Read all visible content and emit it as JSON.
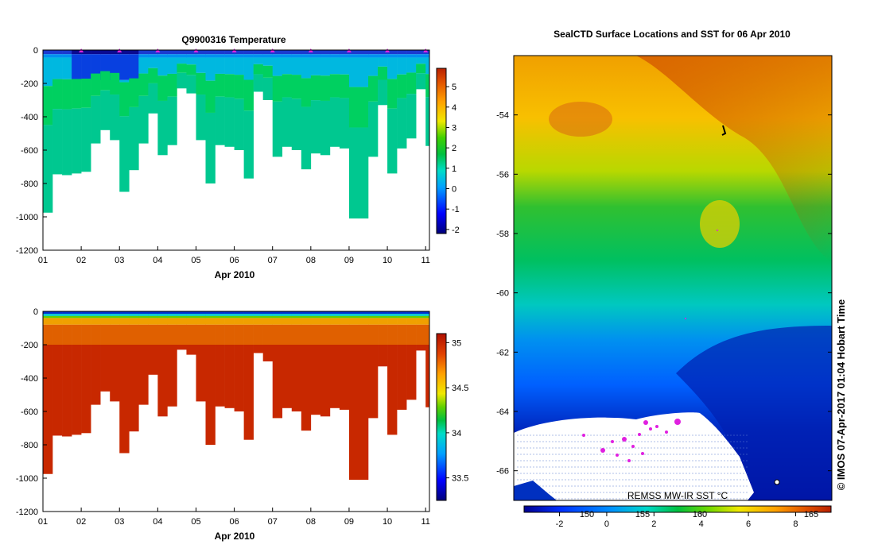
{
  "chart_data": [
    {
      "type": "heatmap",
      "title": "Q9900316  Temperature",
      "xlabel": "Apr 2010",
      "ylabel": "",
      "x_ticks": [
        "01",
        "02",
        "03",
        "04",
        "05",
        "06",
        "07",
        "08",
        "09",
        "10",
        "11"
      ],
      "y_ticks": [
        "0",
        "-200",
        "-400",
        "-600",
        "-800",
        "-1000",
        "-1200"
      ],
      "xlim": [
        1,
        11.1
      ],
      "ylim": [
        -1200,
        0
      ],
      "colorbar": {
        "min": -2.2,
        "max": 5.9,
        "ticks": [
          "5",
          "4",
          "3",
          "2",
          "1",
          "0",
          "-1",
          "-2"
        ]
      },
      "profile_days": [
        1.0,
        1.25,
        1.5,
        1.75,
        2.0,
        2.25,
        2.5,
        2.75,
        3.0,
        3.25,
        3.5,
        3.75,
        4.0,
        4.25,
        4.5,
        4.75,
        5.0,
        5.25,
        5.5,
        5.75,
        6.0,
        6.25,
        6.5,
        6.75,
        7.0,
        7.25,
        7.5,
        7.75,
        8.0,
        8.25,
        8.5,
        8.75,
        9.0,
        9.25,
        9.5,
        9.75,
        10.0,
        10.25,
        10.5,
        10.75,
        11.0
      ],
      "profile_max_depth": [
        975,
        745,
        750,
        740,
        730,
        560,
        480,
        540,
        850,
        720,
        560,
        380,
        630,
        570,
        230,
        260,
        540,
        800,
        570,
        580,
        600,
        770,
        250,
        300,
        640,
        580,
        600,
        715,
        620,
        630,
        580,
        590,
        1010,
        1010,
        640,
        330,
        740,
        590,
        530,
        235,
        575
      ],
      "surface_markers_days": [
        2.0,
        3.0,
        4.0,
        5.0,
        6.0,
        7.0,
        8.0,
        9.0,
        10.0,
        11.0
      ]
    },
    {
      "type": "heatmap",
      "title": "",
      "xlabel": "Apr 2010",
      "ylabel": "",
      "x_ticks": [
        "01",
        "02",
        "03",
        "04",
        "05",
        "06",
        "07",
        "08",
        "09",
        "10",
        "11"
      ],
      "y_ticks": [
        "0",
        "-200",
        "-400",
        "-600",
        "-800",
        "-1000",
        "-1200"
      ],
      "xlim": [
        1,
        11.1
      ],
      "ylim": [
        -1200,
        0
      ],
      "colorbar": {
        "min": 33.25,
        "max": 35.1,
        "ticks": [
          "35",
          "34.5",
          "34",
          "33.5"
        ]
      },
      "profile_days": [
        1.0,
        1.25,
        1.5,
        1.75,
        2.0,
        2.25,
        2.5,
        2.75,
        3.0,
        3.25,
        3.5,
        3.75,
        4.0,
        4.25,
        4.5,
        4.75,
        5.0,
        5.25,
        5.5,
        5.75,
        6.0,
        6.25,
        6.5,
        6.75,
        7.0,
        7.25,
        7.5,
        7.75,
        8.0,
        8.25,
        8.5,
        8.75,
        9.0,
        9.25,
        9.5,
        9.75,
        10.0,
        10.25,
        10.5,
        10.75,
        11.0
      ],
      "profile_max_depth": [
        975,
        745,
        750,
        740,
        730,
        560,
        480,
        540,
        850,
        720,
        560,
        380,
        630,
        570,
        230,
        260,
        540,
        800,
        570,
        580,
        600,
        770,
        250,
        300,
        640,
        580,
        600,
        715,
        620,
        630,
        580,
        590,
        1010,
        1010,
        640,
        330,
        740,
        590,
        530,
        235,
        575
      ]
    },
    {
      "type": "heatmap",
      "title": "SealCTD Surface Locations and SST for 06 Apr 2010",
      "y_ticks": [
        "-54",
        "-56",
        "-58",
        "-60",
        "-62",
        "-64",
        "-66"
      ],
      "ylim": [
        -67,
        -52
      ],
      "colorbar_ticks": [
        "-2",
        "0",
        "2",
        "4",
        "6",
        "8"
      ],
      "colorbar_overlay_ticks": [
        "150",
        "155",
        "160",
        "165"
      ],
      "colorbar_range": [
        -3.5,
        9.5
      ],
      "source_label": "REMSS MW-IR SST °C",
      "copyright": "©  IMOS 07-Apr-2017 01:04 Hobart Time"
    }
  ]
}
